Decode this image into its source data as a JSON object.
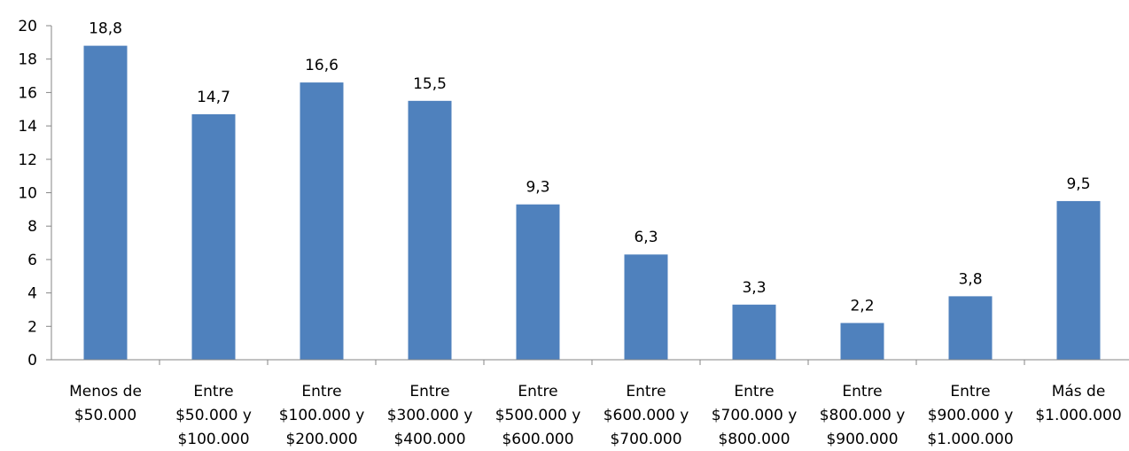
{
  "chart_data": {
    "type": "bar",
    "title": "",
    "xlabel": "",
    "ylabel": "",
    "ylim": [
      0,
      20
    ],
    "yticks": [
      "0",
      "2",
      "4",
      "6",
      "8",
      "10",
      "12",
      "14",
      "16",
      "18",
      "20"
    ],
    "grid": false,
    "legend": "none",
    "bar_color": "#4f81bd",
    "categories": [
      [
        "Menos de",
        "$50.000"
      ],
      [
        "Entre",
        "$50.000 y",
        "$100.000"
      ],
      [
        "Entre",
        "$100.000 y",
        "$200.000"
      ],
      [
        "Entre",
        "$300.000 y",
        "$400.000"
      ],
      [
        "Entre",
        "$500.000 y",
        "$600.000"
      ],
      [
        "Entre",
        "$600.000 y",
        "$700.000"
      ],
      [
        "Entre",
        "$700.000 y",
        "$800.000"
      ],
      [
        "Entre",
        "$800.000 y",
        "$900.000"
      ],
      [
        "Entre",
        "$900.000 y",
        "$1.000.000"
      ],
      [
        "Más de",
        "$1.000.000"
      ]
    ],
    "values": [
      18.8,
      14.7,
      16.6,
      15.5,
      9.3,
      6.3,
      3.3,
      2.2,
      3.8,
      9.5
    ],
    "data_labels": [
      "18,8",
      "14,7",
      "16,6",
      "15,5",
      "9,3",
      "6,3",
      "3,3",
      "2,2",
      "3,8",
      "9,5"
    ]
  }
}
